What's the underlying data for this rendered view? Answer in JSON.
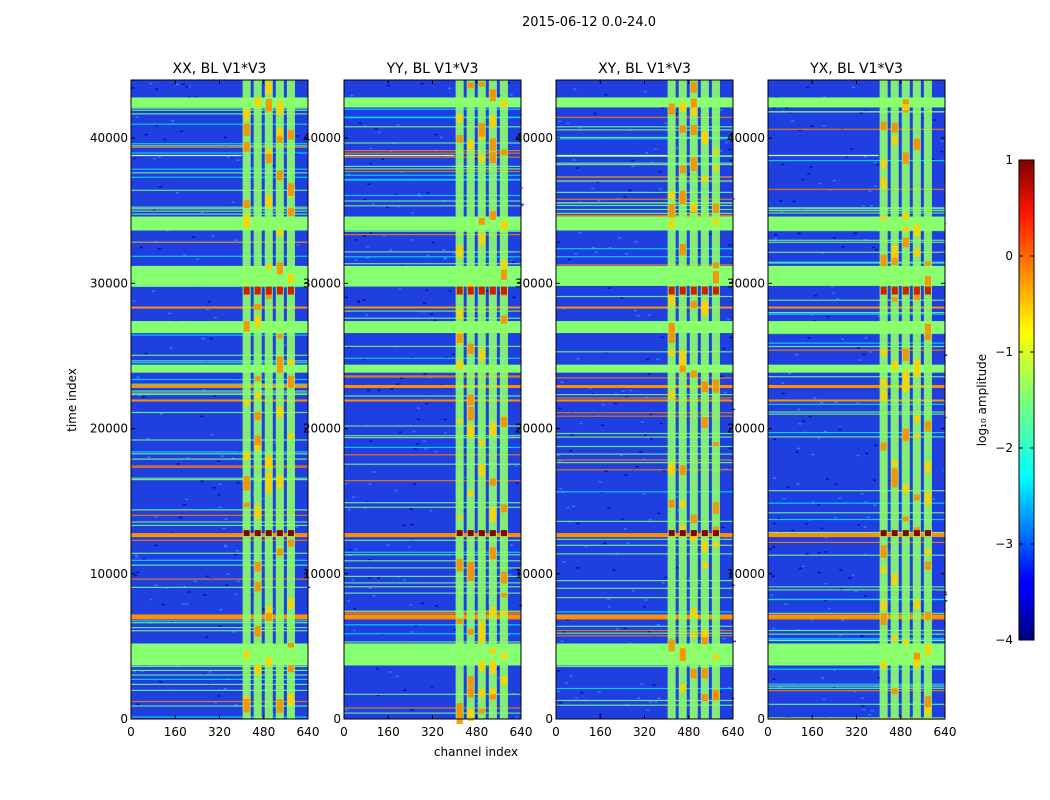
{
  "figure": {
    "suptitle": "2015-06-12 0.0-24.0",
    "xlabel": "channel index",
    "ylabel": "time index"
  },
  "chart_data": [
    {
      "type": "heatmap",
      "title": "XX, BL V1*V3",
      "xlabel": "channel index",
      "ylabel": "time index",
      "xlim": [
        0,
        640
      ],
      "ylim": [
        0,
        44000
      ],
      "xticks": [
        "0",
        "160",
        "320",
        "480",
        "640"
      ],
      "yticks": [
        "0",
        "10000",
        "20000",
        "30000",
        "40000"
      ]
    },
    {
      "type": "heatmap",
      "title": "YY, BL V1*V3",
      "xlim": [
        0,
        640
      ],
      "ylim": [
        0,
        44000
      ],
      "xticks": [
        "0",
        "160",
        "320",
        "480",
        "640"
      ],
      "yticks": [
        "0",
        "10000",
        "20000",
        "30000",
        "40000"
      ]
    },
    {
      "type": "heatmap",
      "title": "XY, BL V1*V3",
      "xlim": [
        0,
        640
      ],
      "ylim": [
        0,
        44000
      ],
      "xticks": [
        "0",
        "160",
        "320",
        "480",
        "640"
      ],
      "yticks": [
        "0",
        "10000",
        "20000",
        "30000",
        "40000"
      ]
    },
    {
      "type": "heatmap",
      "title": "YX, BL V1*V3",
      "xlim": [
        0,
        640
      ],
      "ylim": [
        0,
        44000
      ],
      "xticks": [
        "0",
        "160",
        "320",
        "480",
        "640"
      ],
      "yticks": [
        "0",
        "10000",
        "20000",
        "30000",
        "40000"
      ]
    }
  ],
  "colorbar": {
    "label": "log₁₀ amplitude",
    "range": [
      -4,
      1
    ],
    "ticks": [
      "1",
      "0",
      "−1",
      "−2",
      "−3",
      "−4"
    ],
    "colormap": "jet"
  }
}
